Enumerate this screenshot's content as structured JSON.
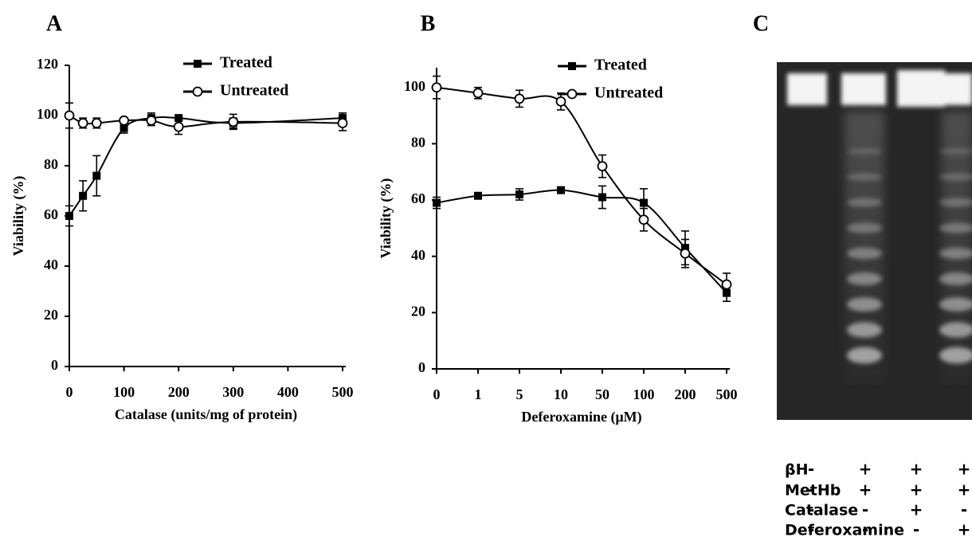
{
  "panel_labels": [
    "A",
    "B",
    "C"
  ],
  "chart_data": [
    {
      "type": "line",
      "x_label": "Catalase (units/mg of protein)",
      "y_label": "Viability (%)",
      "x": [
        0,
        25,
        50,
        100,
        150,
        200,
        300,
        500
      ],
      "series": [
        {
          "name": "Treated",
          "color": "#000000",
          "marker": "square",
          "values": [
            60,
            68,
            76,
            95,
            99,
            99,
            97,
            99
          ],
          "errors": [
            4,
            6,
            8,
            2,
            2,
            1,
            2,
            2
          ]
        },
        {
          "name": "Untreated",
          "color": "#000000",
          "marker": "circle",
          "values": [
            100,
            97,
            97,
            98,
            98,
            95.5,
            97.5,
            97
          ],
          "errors": [
            5,
            2,
            2,
            1,
            2,
            3,
            3,
            3
          ]
        }
      ],
      "xlim": [
        0,
        500
      ],
      "xticks": [
        0,
        100,
        200,
        300,
        400,
        500
      ],
      "ylim": [
        0,
        120
      ],
      "yticks": [
        0,
        20,
        40,
        60,
        80,
        100,
        120
      ],
      "legend": "top-right"
    },
    {
      "type": "line",
      "x_label": "Deferoxamine (μM)",
      "y_label": "Viability (%)",
      "categories": [
        "0",
        "1",
        "5",
        "10",
        "50",
        "100",
        "200",
        "500"
      ],
      "series": [
        {
          "name": "Treated",
          "color": "#000000",
          "marker": "square",
          "values": [
            59,
            61.5,
            62,
            63.5,
            61,
            59,
            43,
            27
          ],
          "errors": [
            2,
            1,
            2,
            1,
            4,
            5,
            6,
            3
          ]
        },
        {
          "name": "Untreated",
          "color": "#000000",
          "marker": "circle",
          "values": [
            100,
            98,
            96,
            95,
            72,
            53,
            41,
            30
          ],
          "errors": [
            4,
            2,
            3,
            3,
            4,
            4,
            5,
            4
          ]
        }
      ],
      "ylim": [
        0,
        107
      ],
      "yticks": [
        0,
        20,
        40,
        60,
        80,
        100
      ],
      "legend": "top-right"
    }
  ],
  "gel": {
    "rows": [
      {
        "label": "βH",
        "signs": [
          "-",
          "+",
          "+",
          "+"
        ]
      },
      {
        "label": "MetHb",
        "signs": [
          "-",
          "+",
          "+",
          "+"
        ]
      },
      {
        "label": "Catalase",
        "signs": [
          "-",
          "-",
          "+",
          "-"
        ]
      },
      {
        "label": "Deferoxamine",
        "signs": [
          "-",
          "-",
          "-",
          "+"
        ]
      }
    ]
  }
}
